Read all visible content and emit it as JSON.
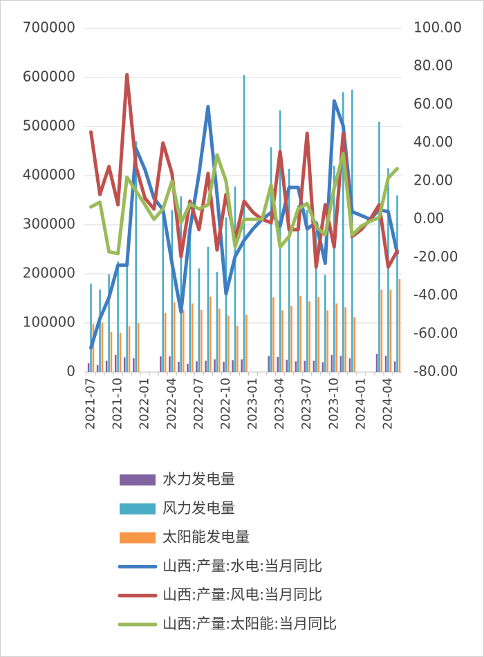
{
  "chart_data": {
    "type": "bar",
    "categories": [
      "2021-07",
      null,
      null,
      "2021-10",
      null,
      null,
      "2022-01",
      null,
      null,
      "2022-04",
      null,
      null,
      "2022-07",
      null,
      null,
      "2022-10",
      null,
      null,
      "2023-01",
      null,
      null,
      "2023-04",
      null,
      null,
      "2023-07",
      null,
      null,
      "2023-10",
      null,
      null,
      "2024-01",
      null,
      null,
      "2024-04",
      null
    ],
    "ylim": [
      0,
      700000
    ],
    "yticks": [
      0,
      100000,
      200000,
      300000,
      400000,
      500000,
      600000,
      700000
    ],
    "y2lim": [
      -80,
      100
    ],
    "y2ticks": [
      {
        "value": -80,
        "label": "-80.00"
      },
      {
        "value": -60,
        "label": "-60.00"
      },
      {
        "value": -40,
        "label": "-40.00"
      },
      {
        "value": -20,
        "label": "-20.00"
      },
      {
        "value": 0,
        "label": "0.00"
      },
      {
        "value": 20,
        "label": "20.00"
      },
      {
        "value": 40,
        "label": "40.00"
      },
      {
        "value": 60,
        "label": "60.00"
      },
      {
        "value": 80,
        "label": "80.00"
      },
      {
        "value": 100,
        "label": "100.00"
      }
    ],
    "grid": true,
    "legend": "bottom",
    "series": [
      {
        "name": "水力发电量",
        "type": "bar",
        "color": "#8064a2",
        "values": [
          18000,
          14000,
          23000,
          35000,
          30000,
          28000,
          null,
          null,
          32000,
          32000,
          21000,
          17000,
          22000,
          23000,
          26000,
          21000,
          24000,
          26000,
          null,
          null,
          33000,
          31000,
          25000,
          22000,
          23000,
          23000,
          20000,
          35000,
          33000,
          28000,
          null,
          null,
          37000,
          33000,
          22000
        ]
      },
      {
        "name": "风力发电量",
        "type": "bar",
        "color": "#4bacc6",
        "values": [
          180000,
          168000,
          199000,
          225000,
          215000,
          470000,
          null,
          null,
          320000,
          330000,
          358000,
          290000,
          211000,
          255000,
          204000,
          315000,
          378000,
          605000,
          null,
          null,
          458000,
          533000,
          414000,
          339000,
          330000,
          287000,
          198000,
          420000,
          570000,
          575000,
          null,
          null,
          510000,
          415000,
          360000
        ]
      },
      {
        "name": "太阳能发电量",
        "type": "bar",
        "color": "#f79646",
        "values": [
          98000,
          101000,
          82000,
          80000,
          94000,
          100000,
          null,
          null,
          121000,
          142000,
          127000,
          140000,
          127000,
          154000,
          129000,
          115000,
          94000,
          117000,
          null,
          null,
          152000,
          126000,
          135000,
          155000,
          144000,
          153000,
          126000,
          140000,
          132000,
          112000,
          null,
          null,
          168000,
          168000,
          190000
        ]
      },
      {
        "name": "山西:产量:水电:当月同比",
        "type": "line",
        "axis": "y2",
        "color": "#3f7dc2",
        "values": [
          -67.3,
          -52,
          -41,
          -24,
          -24,
          37,
          26,
          11,
          5,
          -23,
          -48.5,
          -5,
          24,
          59,
          13,
          -39,
          -19.5,
          -11,
          -5,
          0,
          3.5,
          -3.6,
          16.7,
          16.7,
          -5,
          -1.8,
          -23,
          62,
          49,
          4,
          2,
          0,
          5,
          4,
          -17.7
        ]
      },
      {
        "name": "山西:产量:风电:当月同比",
        "type": "line",
        "axis": "y2",
        "color": "#c0504d",
        "values": [
          45.7,
          13,
          27.6,
          7.6,
          75.7,
          27.6,
          11,
          5.4,
          40,
          24,
          -19.5,
          9.5,
          -5.4,
          24,
          -16,
          13,
          -11,
          9.5,
          3.6,
          0,
          -1.8,
          35.5,
          -5.4,
          -5.4,
          45,
          -25,
          7.6,
          -14.5,
          45,
          -9,
          -5.4,
          0,
          7.6,
          -25,
          -16.6
        ]
      },
      {
        "name": "山西:产量:太阳能:当月同比",
        "type": "line",
        "axis": "y2",
        "color": "#9bbb59",
        "values": [
          6.5,
          9,
          -17,
          -18,
          22,
          14.9,
          7.6,
          0,
          5.4,
          20,
          -1.8,
          8,
          5.4,
          7.6,
          33.7,
          20,
          -14.5,
          0,
          0,
          0,
          18,
          -14.5,
          -9,
          5.4,
          8.3,
          -3.6,
          -8.3,
          16.3,
          34.4,
          -8.3,
          -3.6,
          -1,
          1,
          21.7,
          26.5
        ]
      }
    ]
  }
}
